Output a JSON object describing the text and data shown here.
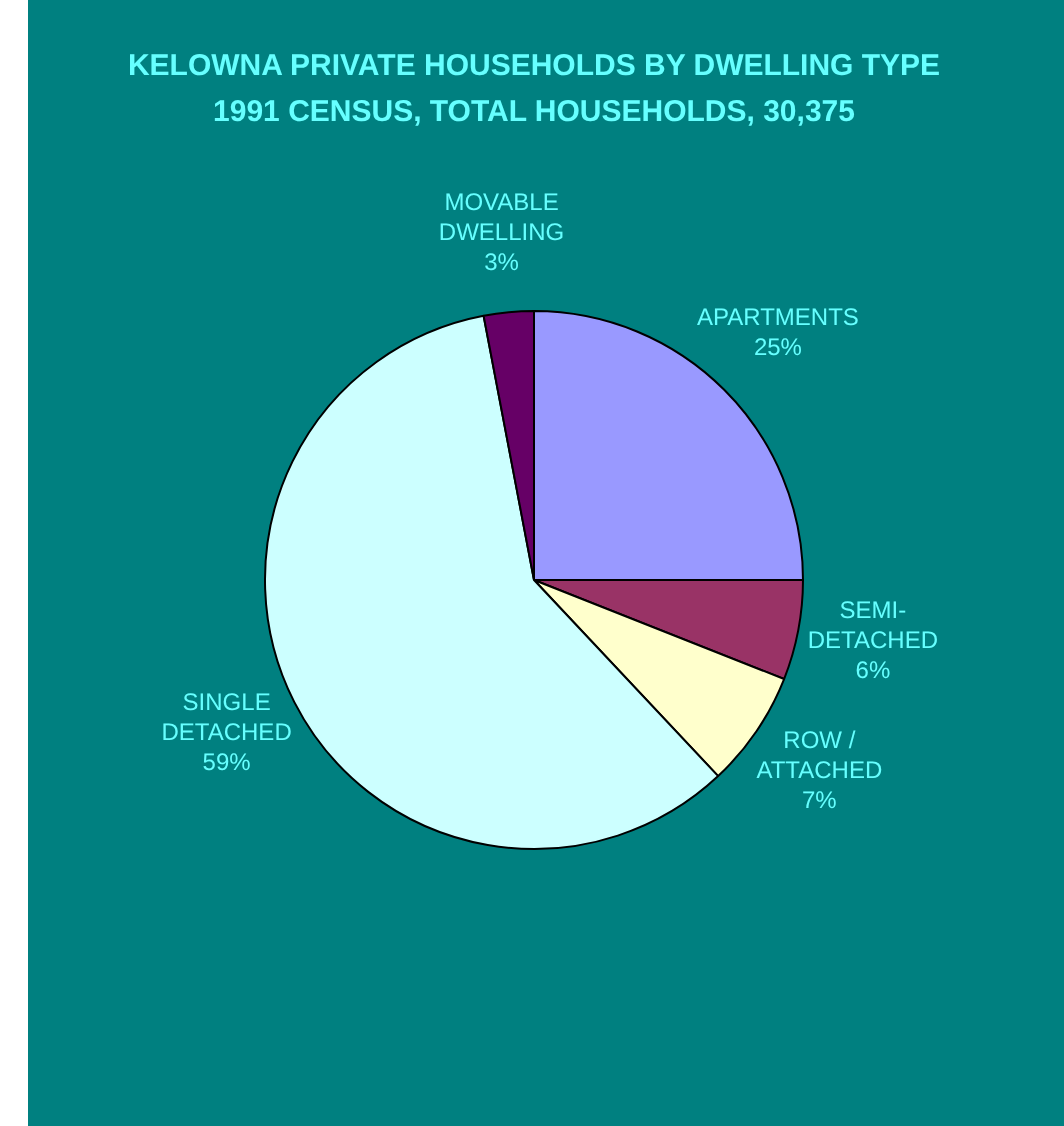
{
  "chart_data": {
    "type": "pie",
    "title": "KELOWNA PRIVATE HOUSEHOLDS BY DWELLING TYPE",
    "subtitle": "1991 CENSUS, TOTAL HOUSEHOLDS, 30,375",
    "categories": [
      "APARTMENTS",
      "SEMI-DETACHED",
      "ROW / ATTACHED",
      "SINGLE DETACHED",
      "MOVABLE DWELLING"
    ],
    "values": [
      25,
      6,
      7,
      59,
      3
    ],
    "colors": [
      "#9999ff",
      "#993366",
      "#ffffcc",
      "#ccffff",
      "#660066"
    ],
    "value_labels": [
      "25%",
      "6%",
      "7%",
      "59%",
      "3%"
    ],
    "legend": false
  }
}
